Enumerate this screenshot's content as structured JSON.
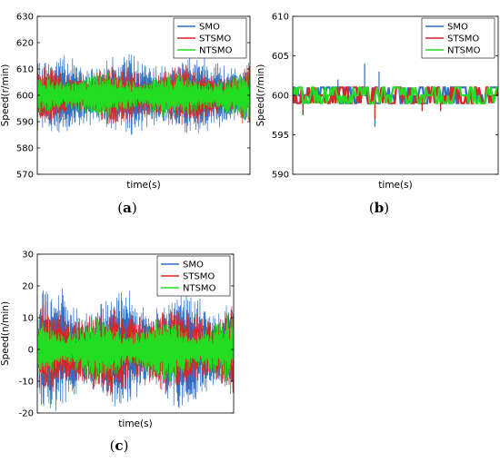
{
  "chart_data": [
    {
      "id": "a",
      "type": "line",
      "caption_letter": "a",
      "xlabel": "time(s)",
      "ylabel": "Speed(r/min)",
      "ylim": [
        570,
        630
      ],
      "yticks": [
        570,
        580,
        590,
        600,
        610,
        620,
        630
      ],
      "series": [
        {
          "name": "SMO",
          "color": "#2f6fc4",
          "center": 600,
          "amplitude": 11,
          "envelope_variation": 2,
          "noise": "dense"
        },
        {
          "name": "STSMO",
          "color": "#d62728",
          "center": 600,
          "amplitude": 8,
          "envelope_variation": 2,
          "noise": "dense"
        },
        {
          "name": "NTSMO",
          "color": "#22dd22",
          "center": 600,
          "amplitude": 6,
          "envelope_variation": 1.5,
          "noise": "dense"
        }
      ],
      "legend": "top-right"
    },
    {
      "id": "b",
      "type": "line",
      "caption_letter": "b",
      "xlabel": "time(s)",
      "ylabel": "Speed(r/min)",
      "ylim": [
        590,
        610
      ],
      "yticks": [
        590,
        595,
        600,
        605,
        610
      ],
      "series": [
        {
          "name": "SMO",
          "color": "#2f6fc4",
          "center": 600,
          "amplitude": 1,
          "max_spike": 604,
          "min_spike": 596,
          "noise": "quantized"
        },
        {
          "name": "STSMO",
          "color": "#d62728",
          "center": 600,
          "amplitude": 1,
          "min_spike": 597,
          "noise": "quantized"
        },
        {
          "name": "NTSMO",
          "color": "#22dd22",
          "center": 600,
          "amplitude": 1,
          "noise": "quantized"
        }
      ],
      "legend": "top-right"
    },
    {
      "id": "c",
      "type": "line",
      "caption_letter": "c",
      "xlabel": "time(s)",
      "ylabel": "Speed(n/min)",
      "ylim": [
        -20,
        30
      ],
      "yticks": [
        -20,
        -10,
        0,
        10,
        20,
        30
      ],
      "series": [
        {
          "name": "SMO",
          "color": "#2f6fc4",
          "center": 0,
          "amplitude": 13,
          "envelope_variation": 3,
          "noise": "dense"
        },
        {
          "name": "STSMO",
          "color": "#d62728",
          "center": 0,
          "amplitude": 10,
          "envelope_variation": 2,
          "noise": "dense"
        },
        {
          "name": "NTSMO",
          "color": "#22dd22",
          "center": 0,
          "amplitude": 7,
          "envelope_variation": 2.5,
          "noise": "dense"
        }
      ],
      "legend": "top-right"
    }
  ]
}
